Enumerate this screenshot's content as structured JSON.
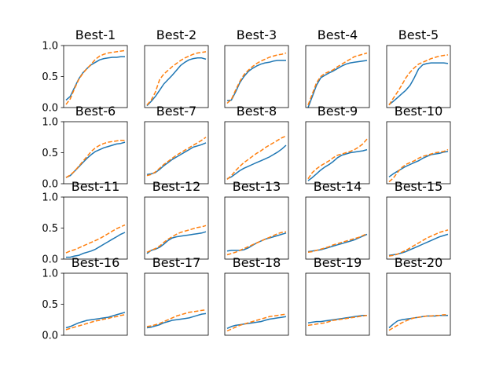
{
  "colors": {
    "series_a": "#1f77b4",
    "series_b": "#ff7f0e",
    "frame": "#000000"
  },
  "chart_data": {
    "type": "line",
    "layout": "grid 4 rows x 5 cols, shared y-axis per row",
    "ylim": [
      0,
      1
    ],
    "yticks": [
      "0.0",
      "0.5",
      "1.0"
    ],
    "xticks_visible": false,
    "legend": "none",
    "panels": [
      {
        "title": "Best-1",
        "series": [
          {
            "style": "solid",
            "values": [
              0.12,
              0.18,
              0.32,
              0.46,
              0.56,
              0.63,
              0.69,
              0.73,
              0.77,
              0.79,
              0.8,
              0.81,
              0.81,
              0.82,
              0.82
            ]
          },
          {
            "style": "dashed",
            "values": [
              0.05,
              0.14,
              0.3,
              0.45,
              0.55,
              0.63,
              0.7,
              0.78,
              0.83,
              0.86,
              0.88,
              0.89,
              0.9,
              0.91,
              0.92
            ]
          }
        ]
      },
      {
        "title": "Best-2",
        "series": [
          {
            "style": "solid",
            "values": [
              0.03,
              0.1,
              0.18,
              0.28,
              0.38,
              0.45,
              0.52,
              0.6,
              0.68,
              0.73,
              0.77,
              0.79,
              0.8,
              0.8,
              0.78
            ]
          },
          {
            "style": "dashed",
            "values": [
              0.04,
              0.12,
              0.25,
              0.45,
              0.54,
              0.6,
              0.66,
              0.71,
              0.76,
              0.8,
              0.83,
              0.86,
              0.88,
              0.89,
              0.9
            ]
          }
        ]
      },
      {
        "title": "Best-3",
        "series": [
          {
            "style": "solid",
            "values": [
              0.11,
              0.12,
              0.25,
              0.4,
              0.5,
              0.58,
              0.63,
              0.67,
              0.7,
              0.72,
              0.73,
              0.75,
              0.76,
              0.76,
              0.76
            ]
          },
          {
            "style": "dashed",
            "values": [
              0.07,
              0.13,
              0.28,
              0.42,
              0.53,
              0.6,
              0.66,
              0.71,
              0.75,
              0.78,
              0.81,
              0.83,
              0.85,
              0.86,
              0.88
            ]
          }
        ]
      },
      {
        "title": "Best-4",
        "series": [
          {
            "style": "solid",
            "values": [
              0.0,
              0.18,
              0.36,
              0.48,
              0.52,
              0.56,
              0.59,
              0.63,
              0.67,
              0.7,
              0.72,
              0.73,
              0.74,
              0.75,
              0.76
            ]
          },
          {
            "style": "dashed",
            "values": [
              0.04,
              0.22,
              0.4,
              0.5,
              0.55,
              0.58,
              0.61,
              0.66,
              0.7,
              0.74,
              0.78,
              0.82,
              0.84,
              0.86,
              0.88
            ]
          }
        ]
      },
      {
        "title": "Best-5",
        "series": [
          {
            "style": "solid",
            "values": [
              0.05,
              0.1,
              0.16,
              0.22,
              0.28,
              0.36,
              0.48,
              0.62,
              0.69,
              0.71,
              0.72,
              0.72,
              0.72,
              0.72,
              0.71
            ]
          },
          {
            "style": "dashed",
            "values": [
              0.04,
              0.15,
              0.25,
              0.36,
              0.48,
              0.57,
              0.64,
              0.7,
              0.73,
              0.76,
              0.79,
              0.81,
              0.83,
              0.84,
              0.85
            ]
          }
        ]
      },
      {
        "title": "Best-6",
        "series": [
          {
            "style": "solid",
            "values": [
              0.1,
              0.13,
              0.2,
              0.27,
              0.34,
              0.41,
              0.47,
              0.52,
              0.55,
              0.58,
              0.6,
              0.62,
              0.64,
              0.65,
              0.67
            ]
          },
          {
            "style": "dashed",
            "values": [
              0.1,
              0.14,
              0.2,
              0.28,
              0.36,
              0.44,
              0.52,
              0.58,
              0.62,
              0.65,
              0.67,
              0.68,
              0.69,
              0.7,
              0.7
            ]
          }
        ]
      },
      {
        "title": "Best-7",
        "series": [
          {
            "style": "solid",
            "values": [
              0.15,
              0.16,
              0.18,
              0.23,
              0.29,
              0.34,
              0.39,
              0.43,
              0.47,
              0.51,
              0.55,
              0.59,
              0.61,
              0.63,
              0.66
            ]
          },
          {
            "style": "dashed",
            "values": [
              0.13,
              0.15,
              0.19,
              0.25,
              0.31,
              0.36,
              0.41,
              0.46,
              0.5,
              0.54,
              0.58,
              0.62,
              0.66,
              0.7,
              0.75
            ]
          }
        ]
      },
      {
        "title": "Best-8",
        "series": [
          {
            "style": "solid",
            "values": [
              0.08,
              0.11,
              0.16,
              0.21,
              0.25,
              0.28,
              0.31,
              0.34,
              0.37,
              0.4,
              0.43,
              0.47,
              0.51,
              0.56,
              0.62
            ]
          },
          {
            "style": "dashed",
            "values": [
              0.07,
              0.13,
              0.21,
              0.28,
              0.34,
              0.39,
              0.44,
              0.49,
              0.53,
              0.58,
              0.62,
              0.66,
              0.7,
              0.74,
              0.77
            ]
          }
        ]
      },
      {
        "title": "Best-9",
        "series": [
          {
            "style": "solid",
            "values": [
              0.05,
              0.1,
              0.16,
              0.22,
              0.27,
              0.31,
              0.36,
              0.42,
              0.46,
              0.48,
              0.5,
              0.51,
              0.52,
              0.53,
              0.55
            ]
          },
          {
            "style": "dashed",
            "values": [
              0.08,
              0.18,
              0.24,
              0.29,
              0.33,
              0.37,
              0.42,
              0.46,
              0.48,
              0.5,
              0.52,
              0.55,
              0.59,
              0.64,
              0.72
            ]
          }
        ]
      },
      {
        "title": "Best-10",
        "series": [
          {
            "style": "solid",
            "values": [
              0.11,
              0.16,
              0.2,
              0.24,
              0.28,
              0.31,
              0.34,
              0.37,
              0.41,
              0.44,
              0.47,
              0.48,
              0.49,
              0.51,
              0.52
            ]
          },
          {
            "style": "dashed",
            "values": [
              0.03,
              0.09,
              0.18,
              0.26,
              0.31,
              0.34,
              0.37,
              0.41,
              0.44,
              0.46,
              0.48,
              0.5,
              0.51,
              0.52,
              0.55
            ]
          }
        ]
      },
      {
        "title": "Best-11",
        "series": [
          {
            "style": "solid",
            "values": [
              0.03,
              0.03,
              0.05,
              0.06,
              0.09,
              0.11,
              0.13,
              0.16,
              0.2,
              0.24,
              0.28,
              0.32,
              0.36,
              0.4,
              0.43
            ]
          },
          {
            "style": "dashed",
            "values": [
              0.1,
              0.13,
              0.15,
              0.18,
              0.21,
              0.24,
              0.27,
              0.3,
              0.33,
              0.37,
              0.41,
              0.45,
              0.49,
              0.52,
              0.55
            ]
          }
        ]
      },
      {
        "title": "Best-12",
        "series": [
          {
            "style": "solid",
            "values": [
              0.09,
              0.14,
              0.16,
              0.19,
              0.24,
              0.3,
              0.34,
              0.36,
              0.37,
              0.38,
              0.39,
              0.4,
              0.41,
              0.42,
              0.44
            ]
          },
          {
            "style": "dashed",
            "values": [
              0.11,
              0.14,
              0.17,
              0.21,
              0.27,
              0.32,
              0.36,
              0.4,
              0.43,
              0.45,
              0.47,
              0.49,
              0.51,
              0.52,
              0.54
            ]
          }
        ]
      },
      {
        "title": "Best-13",
        "series": [
          {
            "style": "solid",
            "values": [
              0.13,
              0.14,
              0.14,
              0.14,
              0.15,
              0.18,
              0.22,
              0.26,
              0.29,
              0.32,
              0.34,
              0.36,
              0.38,
              0.4,
              0.42
            ]
          },
          {
            "style": "dashed",
            "values": [
              0.07,
              0.09,
              0.11,
              0.14,
              0.17,
              0.2,
              0.23,
              0.26,
              0.29,
              0.32,
              0.35,
              0.38,
              0.41,
              0.43,
              0.44
            ]
          }
        ]
      },
      {
        "title": "Best-14",
        "series": [
          {
            "style": "solid",
            "values": [
              0.12,
              0.13,
              0.14,
              0.15,
              0.17,
              0.19,
              0.21,
              0.23,
              0.25,
              0.27,
              0.29,
              0.31,
              0.34,
              0.37,
              0.4
            ]
          },
          {
            "style": "dashed",
            "values": [
              0.11,
              0.12,
              0.14,
              0.16,
              0.18,
              0.2,
              0.23,
              0.25,
              0.27,
              0.29,
              0.31,
              0.33,
              0.35,
              0.38,
              0.41
            ]
          }
        ]
      },
      {
        "title": "Best-15",
        "series": [
          {
            "style": "solid",
            "values": [
              0.06,
              0.07,
              0.08,
              0.1,
              0.12,
              0.15,
              0.18,
              0.21,
              0.24,
              0.27,
              0.3,
              0.33,
              0.36,
              0.38,
              0.4
            ]
          },
          {
            "style": "dashed",
            "values": [
              0.05,
              0.06,
              0.08,
              0.11,
              0.14,
              0.18,
              0.22,
              0.26,
              0.3,
              0.34,
              0.37,
              0.4,
              0.43,
              0.45,
              0.47
            ]
          }
        ]
      },
      {
        "title": "Best-16",
        "series": [
          {
            "style": "solid",
            "values": [
              0.12,
              0.14,
              0.17,
              0.2,
              0.22,
              0.24,
              0.25,
              0.26,
              0.27,
              0.28,
              0.29,
              0.31,
              0.33,
              0.35,
              0.37
            ]
          },
          {
            "style": "dashed",
            "values": [
              0.09,
              0.11,
              0.13,
              0.15,
              0.17,
              0.19,
              0.21,
              0.23,
              0.24,
              0.26,
              0.27,
              0.29,
              0.3,
              0.32,
              0.33
            ]
          }
        ]
      },
      {
        "title": "Best-17",
        "series": [
          {
            "style": "solid",
            "values": [
              0.12,
              0.13,
              0.15,
              0.17,
              0.2,
              0.22,
              0.24,
              0.25,
              0.26,
              0.27,
              0.28,
              0.3,
              0.32,
              0.34,
              0.35
            ]
          },
          {
            "style": "dashed",
            "values": [
              0.14,
              0.15,
              0.17,
              0.19,
              0.22,
              0.25,
              0.28,
              0.31,
              0.33,
              0.35,
              0.37,
              0.38,
              0.39,
              0.4,
              0.41
            ]
          }
        ]
      },
      {
        "title": "Best-18",
        "series": [
          {
            "style": "solid",
            "values": [
              0.11,
              0.14,
              0.16,
              0.17,
              0.18,
              0.19,
              0.2,
              0.21,
              0.22,
              0.24,
              0.26,
              0.27,
              0.28,
              0.29,
              0.3
            ]
          },
          {
            "style": "dashed",
            "values": [
              0.07,
              0.1,
              0.13,
              0.16,
              0.18,
              0.2,
              0.22,
              0.24,
              0.26,
              0.28,
              0.3,
              0.31,
              0.32,
              0.33,
              0.34
            ]
          }
        ]
      },
      {
        "title": "Best-19",
        "series": [
          {
            "style": "solid",
            "values": [
              0.2,
              0.21,
              0.22,
              0.22,
              0.23,
              0.24,
              0.25,
              0.26,
              0.27,
              0.28,
              0.29,
              0.3,
              0.31,
              0.32,
              0.32
            ]
          },
          {
            "style": "dashed",
            "values": [
              0.16,
              0.17,
              0.18,
              0.19,
              0.2,
              0.22,
              0.24,
              0.25,
              0.26,
              0.27,
              0.28,
              0.29,
              0.3,
              0.31,
              0.32
            ]
          }
        ]
      },
      {
        "title": "Best-20",
        "series": [
          {
            "style": "solid",
            "values": [
              0.12,
              0.18,
              0.23,
              0.25,
              0.26,
              0.27,
              0.28,
              0.29,
              0.3,
              0.31,
              0.31,
              0.31,
              0.32,
              0.32,
              0.32
            ]
          },
          {
            "style": "dashed",
            "values": [
              0.08,
              0.12,
              0.16,
              0.2,
              0.23,
              0.26,
              0.28,
              0.29,
              0.3,
              0.31,
              0.31,
              0.32,
              0.32,
              0.33,
              0.33
            ]
          }
        ]
      }
    ]
  }
}
